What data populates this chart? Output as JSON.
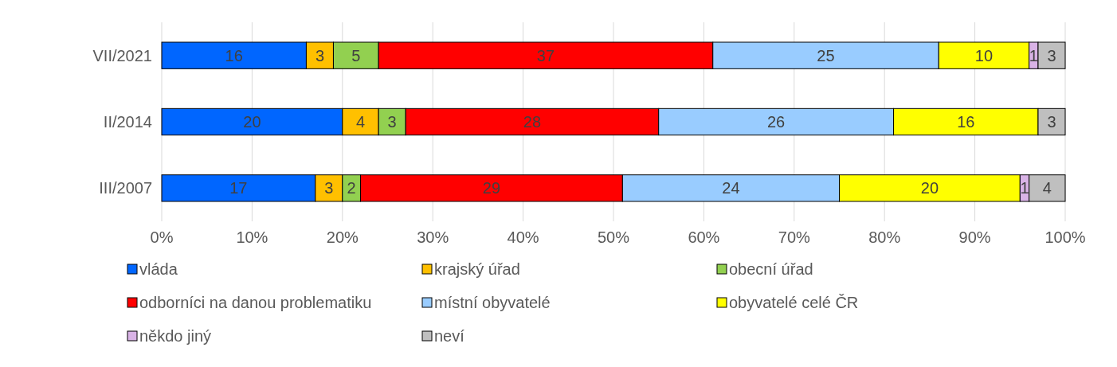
{
  "chart_data": {
    "type": "bar",
    "orientation": "horizontal",
    "stacked": true,
    "data_labels": true,
    "grid": "x",
    "legend": "bottom",
    "categories": [
      "VII/2021",
      "II/2014",
      "III/2007"
    ],
    "xlim": [
      0,
      100
    ],
    "xticks": [
      {
        "value": 0,
        "label": "0%"
      },
      {
        "value": 10,
        "label": "10%"
      },
      {
        "value": 20,
        "label": "20%"
      },
      {
        "value": 30,
        "label": "30%"
      },
      {
        "value": 40,
        "label": "40%"
      },
      {
        "value": 50,
        "label": "50%"
      },
      {
        "value": 60,
        "label": "60%"
      },
      {
        "value": 70,
        "label": "70%"
      },
      {
        "value": 80,
        "label": "80%"
      },
      {
        "value": 90,
        "label": "90%"
      },
      {
        "value": 100,
        "label": "100%"
      }
    ],
    "series": [
      {
        "name": "vláda",
        "color": "#0066ff",
        "values": [
          16,
          20,
          17
        ]
      },
      {
        "name": "krajský úřad",
        "color": "#ffc000",
        "values": [
          3,
          4,
          3
        ]
      },
      {
        "name": "obecní úřad",
        "color": "#92d050",
        "values": [
          5,
          3,
          2
        ]
      },
      {
        "name": "odborníci na danou problematiku",
        "color": "#ff0000",
        "values": [
          37,
          28,
          29
        ]
      },
      {
        "name": "místní obyvatelé",
        "color": "#99ccff",
        "values": [
          25,
          26,
          24
        ]
      },
      {
        "name": "obyvatelé celé ČR",
        "color": "#ffff00",
        "values": [
          10,
          16,
          20
        ]
      },
      {
        "name": "někdo jiný",
        "color": "#d9b3e6",
        "values": [
          1,
          null,
          1
        ]
      },
      {
        "name": "neví",
        "color": "#bfbfbf",
        "values": [
          3,
          3,
          4
        ]
      }
    ]
  }
}
